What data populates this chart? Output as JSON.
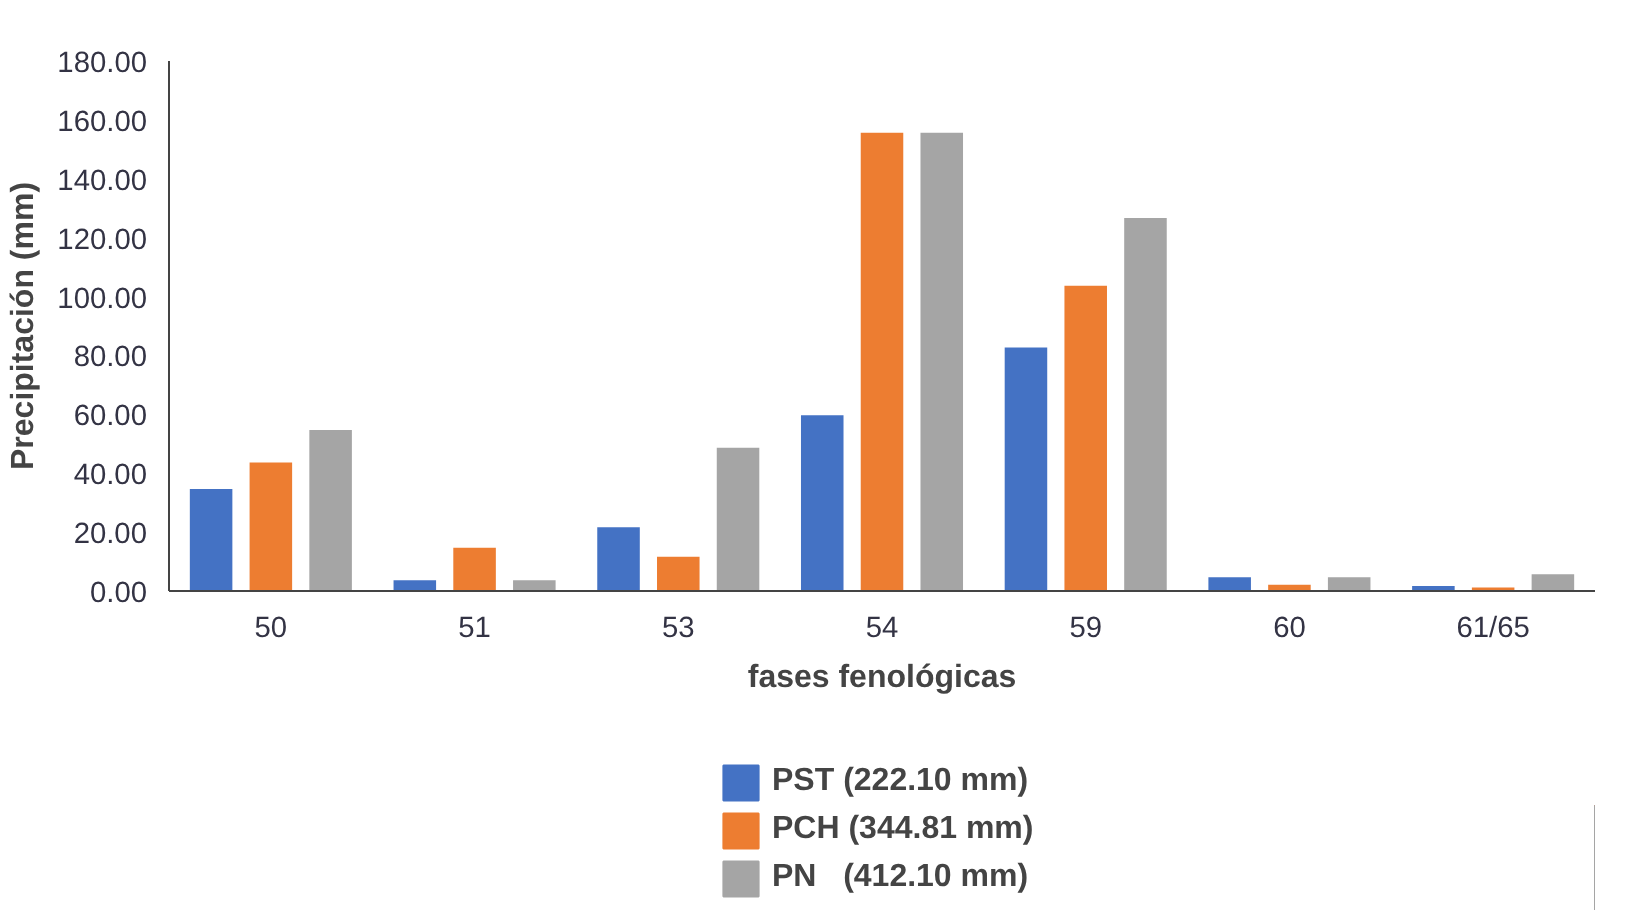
{
  "chart_data": {
    "type": "bar",
    "xlabel": "fases fenológicas",
    "ylabel": "Precipitación (mm)",
    "categories": [
      "50",
      "51",
      "53",
      "54",
      "59",
      "60",
      "61/65"
    ],
    "series": [
      {
        "name": "PST (222.10 mm)",
        "color": "#4472c4",
        "values": [
          35,
          4,
          22,
          60,
          83,
          5,
          2
        ]
      },
      {
        "name": "PCH (344.81 mm)",
        "color": "#ed7d31",
        "values": [
          44,
          15,
          12,
          156,
          104,
          2.5,
          1.5
        ]
      },
      {
        "name": "PN   (412.10 mm)",
        "color": "#a5a5a5",
        "values": [
          55,
          4,
          49,
          156,
          127,
          5,
          6
        ]
      }
    ],
    "ylim": [
      0,
      180
    ],
    "yticks": [
      {
        "value": 0,
        "label": "0.00"
      },
      {
        "value": 20,
        "label": "20.00"
      },
      {
        "value": 40,
        "label": "40.00"
      },
      {
        "value": 60,
        "label": "60.00"
      },
      {
        "value": 80,
        "label": "80.00"
      },
      {
        "value": 100,
        "label": "100.00"
      },
      {
        "value": 120,
        "label": "120.00"
      },
      {
        "value": 140,
        "label": "140.00"
      },
      {
        "value": 160,
        "label": "160.00"
      },
      {
        "value": 180,
        "label": "180.00"
      }
    ],
    "grid": false,
    "legend": "bottom"
  }
}
